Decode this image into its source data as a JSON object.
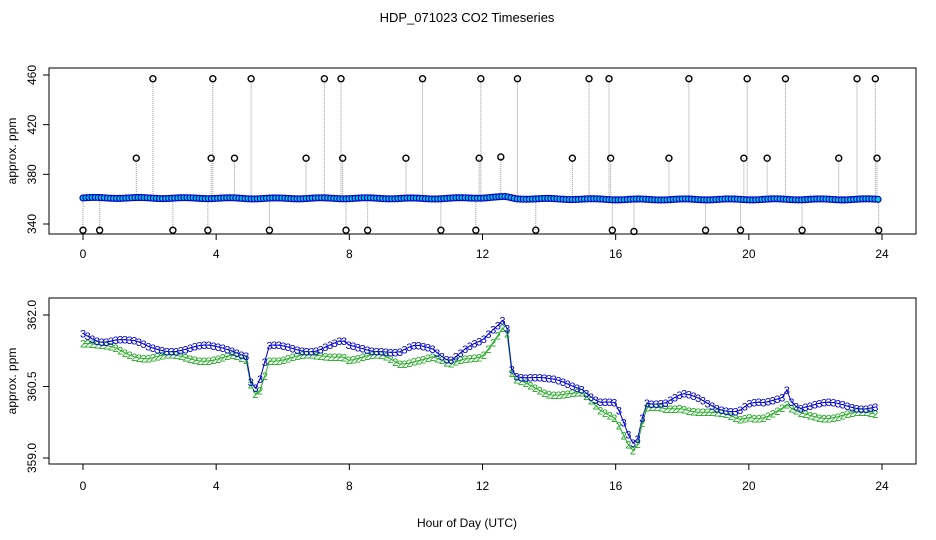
{
  "title": "HDP_071023  CO2 Timeseries",
  "xlabel": "Hour of Day (UTC)",
  "colors": {
    "frame": "#000000",
    "series_outer": "#0000cc",
    "series_inner": "#00cccc",
    "series_mid": "#22aa22",
    "spike_line": "#999999"
  },
  "chart_data": [
    {
      "type": "scatter",
      "panel": "top",
      "ylabel": "approx. ppm",
      "xlim": [
        0,
        24
      ],
      "ylim": [
        334,
        461
      ],
      "xticks": [
        0,
        4,
        8,
        12,
        16,
        20,
        24
      ],
      "yticks": [
        340,
        380,
        420,
        460
      ],
      "tick_labels_x": [
        "0",
        "4",
        "8",
        "12",
        "16",
        "20",
        "24"
      ],
      "tick_labels_y": [
        "340",
        "380",
        "420",
        "460"
      ],
      "marker": "o",
      "baseline": {
        "x": [
          0.0,
          1.0,
          2.0,
          3.0,
          4.0,
          5.0,
          6.0,
          7.0,
          8.0,
          9.0,
          10.0,
          11.0,
          12.0,
          12.7,
          13.0,
          14.0,
          16.0,
          17.0,
          18.0,
          19.0,
          20.0,
          21.0,
          22.0,
          23.0,
          23.8
        ],
        "y": [
          361.0,
          361.0,
          360.9,
          360.8,
          360.8,
          360.6,
          360.6,
          360.7,
          360.7,
          360.7,
          360.5,
          360.6,
          361.2,
          361.8,
          360.4,
          360.2,
          359.8,
          359.7,
          359.8,
          359.8,
          359.8,
          359.9,
          359.8,
          359.8,
          359.9
        ]
      },
      "spikes": [
        {
          "x": 0.0,
          "y": 335
        },
        {
          "x": 0.5,
          "y": 335
        },
        {
          "x": 1.6,
          "y": 393
        },
        {
          "x": 2.1,
          "y": 457
        },
        {
          "x": 2.7,
          "y": 335
        },
        {
          "x": 3.75,
          "y": 335
        },
        {
          "x": 3.85,
          "y": 393
        },
        {
          "x": 3.9,
          "y": 457
        },
        {
          "x": 4.55,
          "y": 393
        },
        {
          "x": 5.05,
          "y": 457
        },
        {
          "x": 5.6,
          "y": 335
        },
        {
          "x": 6.7,
          "y": 393
        },
        {
          "x": 7.25,
          "y": 457
        },
        {
          "x": 7.75,
          "y": 457
        },
        {
          "x": 7.8,
          "y": 393
        },
        {
          "x": 7.9,
          "y": 335
        },
        {
          "x": 8.55,
          "y": 335
        },
        {
          "x": 9.7,
          "y": 393
        },
        {
          "x": 10.2,
          "y": 457
        },
        {
          "x": 10.75,
          "y": 335
        },
        {
          "x": 11.8,
          "y": 335
        },
        {
          "x": 11.9,
          "y": 393
        },
        {
          "x": 11.95,
          "y": 457
        },
        {
          "x": 12.55,
          "y": 394
        },
        {
          "x": 13.05,
          "y": 457
        },
        {
          "x": 13.6,
          "y": 335
        },
        {
          "x": 14.7,
          "y": 393
        },
        {
          "x": 15.2,
          "y": 457
        },
        {
          "x": 15.8,
          "y": 457
        },
        {
          "x": 15.85,
          "y": 393
        },
        {
          "x": 15.9,
          "y": 335
        },
        {
          "x": 16.55,
          "y": 334
        },
        {
          "x": 17.6,
          "y": 393
        },
        {
          "x": 18.2,
          "y": 457
        },
        {
          "x": 18.7,
          "y": 335
        },
        {
          "x": 19.75,
          "y": 335
        },
        {
          "x": 19.85,
          "y": 393
        },
        {
          "x": 19.95,
          "y": 457
        },
        {
          "x": 20.55,
          "y": 393
        },
        {
          "x": 21.1,
          "y": 457
        },
        {
          "x": 21.6,
          "y": 335
        },
        {
          "x": 22.7,
          "y": 393
        },
        {
          "x": 23.25,
          "y": 457
        },
        {
          "x": 23.8,
          "y": 457
        },
        {
          "x": 23.85,
          "y": 393
        },
        {
          "x": 23.9,
          "y": 335
        }
      ]
    },
    {
      "type": "scatter",
      "panel": "bottom",
      "ylabel": "approx. ppm",
      "xlim": [
        0,
        24
      ],
      "ylim": [
        358.9,
        362.2
      ],
      "xticks": [
        0,
        4,
        8,
        12,
        16,
        20,
        24
      ],
      "yticks": [
        359.0,
        360.5,
        362.0
      ],
      "tick_labels_x": [
        "0",
        "4",
        "8",
        "12",
        "16",
        "20",
        "24"
      ],
      "tick_labels_y": [
        "359.0",
        "360.5",
        "362.0"
      ],
      "marker_text": [
        "3",
        "2"
      ],
      "series": [
        {
          "name": "3",
          "x": [
            0.0,
            0.5,
            1.0,
            1.5,
            2.0,
            2.5,
            3.0,
            3.5,
            4.0,
            4.5,
            4.9,
            5.1,
            5.3,
            5.6,
            6.0,
            7.0,
            7.8,
            8.0,
            8.5,
            9.0,
            9.5,
            10.0,
            10.5,
            11.0,
            11.5,
            12.0,
            12.5,
            12.7,
            12.9,
            13.5,
            14.0,
            15.0,
            15.5,
            16.0,
            16.4,
            16.6,
            16.9,
            17.5,
            18.0,
            19.0,
            19.7,
            20.0,
            20.5,
            21.0,
            21.1,
            21.2,
            21.5,
            22.0,
            23.0,
            23.8
          ],
          "y": [
            361.6,
            361.5,
            361.5,
            361.4,
            361.3,
            361.3,
            361.3,
            361.3,
            361.3,
            361.3,
            361.2,
            360.4,
            360.6,
            361.3,
            361.3,
            361.3,
            361.4,
            361.3,
            361.3,
            361.3,
            361.2,
            361.3,
            361.3,
            361.1,
            361.3,
            361.4,
            361.8,
            362.0,
            360.8,
            360.7,
            360.6,
            360.5,
            360.2,
            360.1,
            359.4,
            359.2,
            360.2,
            360.2,
            360.3,
            360.1,
            360.0,
            360.1,
            360.1,
            360.3,
            360.6,
            360.3,
            360.1,
            360.1,
            360.1,
            360.1
          ]
        },
        {
          "name": "2",
          "x": [
            0.0,
            0.5,
            1.0,
            1.5,
            2.0,
            2.5,
            3.0,
            3.5,
            4.0,
            4.5,
            4.9,
            5.1,
            5.3,
            5.6,
            6.0,
            7.0,
            7.8,
            8.0,
            8.5,
            9.0,
            9.5,
            10.0,
            10.5,
            11.0,
            11.5,
            12.0,
            12.5,
            12.7,
            12.9,
            13.5,
            14.0,
            15.0,
            15.5,
            16.0,
            16.4,
            16.6,
            16.9,
            17.5,
            18.0,
            19.0,
            19.7,
            20.0,
            20.5,
            21.0,
            21.1,
            21.2,
            21.5,
            22.0,
            23.0,
            23.8
          ],
          "y": [
            361.4,
            361.3,
            361.3,
            361.2,
            361.1,
            361.1,
            361.1,
            361.1,
            361.1,
            361.1,
            361.0,
            360.3,
            360.4,
            361.1,
            361.1,
            361.1,
            361.2,
            361.1,
            361.1,
            361.1,
            361.0,
            361.1,
            361.1,
            360.9,
            361.1,
            361.2,
            361.6,
            361.8,
            360.6,
            360.5,
            360.4,
            360.3,
            360.0,
            359.9,
            359.3,
            359.1,
            360.0,
            360.0,
            360.1,
            359.9,
            359.8,
            359.9,
            359.9,
            360.0,
            360.1,
            360.0,
            359.9,
            359.9,
            359.9,
            359.9
          ]
        }
      ]
    }
  ]
}
